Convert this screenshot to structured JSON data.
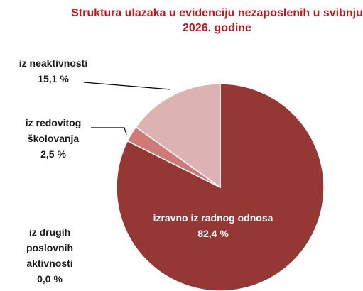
{
  "chart_data": {
    "type": "pie",
    "title": "Struktura ulazaka u evidenciju nezaposlenih u svibnju 2026. godine",
    "categories": [
      "izravno iz radnog odnosa",
      "iz drugih poslovnih aktivnosti",
      "iz redovitog školovanja",
      "iz neaktivnosti"
    ],
    "values": [
      82.4,
      0.0,
      2.5,
      15.1
    ],
    "value_labels": [
      "82,4 %",
      "0,0 %",
      "2,5 %",
      "15,1 %"
    ],
    "colors": [
      "#953735",
      "#b65a58",
      "#d07a78",
      "#dcb3b2"
    ]
  }
}
